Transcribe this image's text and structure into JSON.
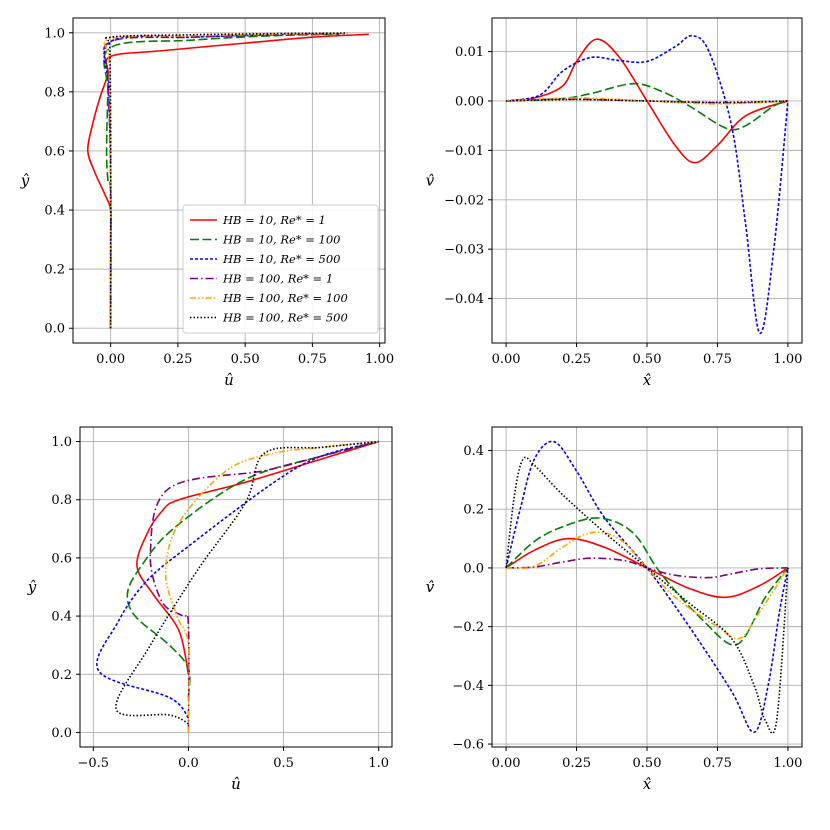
{
  "figure": {
    "panel_count": 4
  },
  "legend": [
    {
      "label": "HB = 10, Re* = 1",
      "color": "#ff0000",
      "style": "solid"
    },
    {
      "label": "HB = 10, Re* = 100",
      "color": "#008000",
      "style": "dashed"
    },
    {
      "label": "HB = 10, Re* = 500",
      "color": "#0000ff",
      "style": "dotted-dense"
    },
    {
      "label": "HB = 100, Re* = 1",
      "color": "#800080",
      "style": "dashdot"
    },
    {
      "label": "HB = 100, Re* = 100",
      "color": "#ffa500",
      "style": "dashdotdot"
    },
    {
      "label": "HB = 100, Re* = 500",
      "color": "#000000",
      "style": "dotted"
    }
  ],
  "chart_data": [
    {
      "type": "line",
      "xlabel": "û",
      "ylabel": "ŷ",
      "xlim": [
        -0.14,
        1.02
      ],
      "ylim": [
        -0.05,
        1.05
      ],
      "xticks": [
        0.0,
        0.25,
        0.5,
        0.75,
        1.0
      ],
      "xtick_labels": [
        "0.00",
        "0.25",
        "0.50",
        "0.75",
        "1.00"
      ],
      "yticks": [
        0.0,
        0.2,
        0.4,
        0.6,
        0.8,
        1.0
      ],
      "ytick_labels": [
        "0.0",
        "0.2",
        "0.4",
        "0.6",
        "0.8",
        "1.0"
      ],
      "grid": true,
      "legend_position": "lower-right",
      "series": [
        {
          "name": "HB = 10, Re* = 1",
          "x": [
            0,
            0,
            0,
            -0.02,
            -0.06,
            -0.085,
            -0.07,
            -0.04,
            -0.01,
            0,
            0.2,
            0.5,
            0.75,
            0.96
          ],
          "y": [
            0,
            0.3,
            0.4,
            0.45,
            0.53,
            0.6,
            0.68,
            0.78,
            0.86,
            0.92,
            0.94,
            0.965,
            0.985,
            0.995
          ]
        },
        {
          "name": "HB = 10, Re* = 100",
          "x": [
            0,
            0,
            -0.01,
            -0.015,
            -0.01,
            0,
            0.3,
            0.6,
            0.85
          ],
          "y": [
            0,
            0.45,
            0.5,
            0.6,
            0.8,
            0.95,
            0.975,
            0.99,
            0.995
          ]
        },
        {
          "name": "HB = 10, Re* = 500",
          "x": [
            0,
            0,
            -0.005,
            0,
            0.3,
            0.6,
            0.85
          ],
          "y": [
            0,
            0.5,
            0.8,
            0.97,
            0.985,
            0.993,
            0.997
          ]
        },
        {
          "name": "HB = 100, Re* = 1",
          "x": [
            0,
            0,
            -0.01,
            0,
            0.3,
            0.6,
            0.88
          ],
          "y": [
            0,
            0.55,
            0.85,
            0.97,
            0.985,
            0.993,
            0.997
          ]
        },
        {
          "name": "HB = 100, Re* = 100",
          "x": [
            0,
            0,
            -0.005,
            0,
            0.3,
            0.6,
            0.88
          ],
          "y": [
            0,
            0.6,
            0.9,
            0.98,
            0.99,
            0.995,
            0.998
          ]
        },
        {
          "name": "HB = 100, Re* = 500",
          "x": [
            0,
            0,
            -0.003,
            0,
            0.3,
            0.6,
            0.88
          ],
          "y": [
            0,
            0.7,
            0.95,
            0.985,
            0.993,
            0.997,
            0.999
          ]
        }
      ]
    },
    {
      "type": "line",
      "xlabel": "x̂",
      "ylabel": "v̂",
      "xlim": [
        -0.05,
        1.05
      ],
      "ylim": [
        -0.049,
        0.0168
      ],
      "xticks": [
        0.0,
        0.25,
        0.5,
        0.75,
        1.0
      ],
      "xtick_labels": [
        "0.00",
        "0.25",
        "0.50",
        "0.75",
        "1.00"
      ],
      "yticks": [
        0.01,
        0.0,
        -0.01,
        -0.02,
        -0.03,
        -0.04
      ],
      "ytick_labels": [
        "0.01",
        "0.00",
        "−0.01",
        "−0.02",
        "−0.03",
        "−0.04"
      ],
      "grid": true,
      "series": [
        {
          "name": "HB = 10, Re* = 1",
          "x": [
            0,
            0.1,
            0.2,
            0.25,
            0.32,
            0.4,
            0.5,
            0.6,
            0.67,
            0.75,
            0.85,
            1.0
          ],
          "y": [
            0,
            0.0006,
            0.003,
            0.008,
            0.0125,
            0.009,
            0.0,
            -0.009,
            -0.0125,
            -0.009,
            -0.003,
            0
          ]
        },
        {
          "name": "HB = 10, Re* = 100",
          "x": [
            0,
            0.2,
            0.3,
            0.45,
            0.55,
            0.65,
            0.78,
            0.85,
            0.95,
            1.0
          ],
          "y": [
            0,
            0.0005,
            0.0015,
            0.0035,
            0.002,
            -0.001,
            -0.0055,
            -0.005,
            -0.001,
            0
          ]
        },
        {
          "name": "HB = 10, Re* = 500",
          "x": [
            0,
            0.12,
            0.2,
            0.3,
            0.4,
            0.5,
            0.6,
            0.66,
            0.72,
            0.8,
            0.85,
            0.9,
            0.95,
            1.0
          ],
          "y": [
            0,
            0.0012,
            0.006,
            0.0088,
            0.0082,
            0.008,
            0.011,
            0.0132,
            0.01,
            -0.005,
            -0.025,
            -0.047,
            -0.03,
            0
          ]
        },
        {
          "name": "HB = 100, Re* = 1",
          "x": [
            0,
            0.2,
            0.5,
            0.8,
            1.0
          ],
          "y": [
            0,
            0.0004,
            0.0,
            -0.0004,
            0
          ]
        },
        {
          "name": "HB = 100, Re* = 100",
          "x": [
            0,
            0.25,
            0.5,
            0.75,
            1.0
          ],
          "y": [
            0,
            0.0006,
            0.0,
            -0.0006,
            0
          ]
        },
        {
          "name": "HB = 100, Re* = 500",
          "x": [
            0,
            0.25,
            0.5,
            0.75,
            1.0
          ],
          "y": [
            0,
            0.0003,
            0.0,
            -0.0003,
            0
          ]
        }
      ]
    },
    {
      "type": "line",
      "xlabel": "û",
      "ylabel": "ŷ",
      "xlim": [
        -0.57,
        1.07
      ],
      "ylim": [
        -0.05,
        1.05
      ],
      "xticks": [
        -0.5,
        0.0,
        0.5,
        1.0
      ],
      "xtick_labels": [
        "−0.5",
        "0.0",
        "0.5",
        "1.0"
      ],
      "yticks": [
        0.0,
        0.2,
        0.4,
        0.6,
        0.8,
        1.0
      ],
      "ytick_labels": [
        "0.0",
        "0.2",
        "0.4",
        "0.6",
        "0.8",
        "1.0"
      ],
      "grid": true,
      "series": [
        {
          "name": "HB = 10, Re* = 1",
          "x": [
            0,
            -0.05,
            -0.18,
            -0.27,
            -0.22,
            -0.14,
            -0.05,
            0.3,
            0.7,
            1.0
          ],
          "y": [
            0.2,
            0.35,
            0.47,
            0.57,
            0.68,
            0.76,
            0.8,
            0.86,
            0.94,
            1.0
          ]
        },
        {
          "name": "HB = 10, Re* = 100",
          "x": [
            0,
            0,
            -0.1,
            -0.28,
            -0.32,
            -0.25,
            -0.08,
            0.3,
            0.7,
            1.0
          ],
          "y": [
            0.12,
            0.22,
            0.3,
            0.4,
            0.48,
            0.57,
            0.7,
            0.87,
            0.95,
            1.0
          ]
        },
        {
          "name": "HB = 10, Re* = 500",
          "x": [
            0,
            -0.1,
            -0.47,
            -0.37,
            -0.22,
            0,
            0.45,
            0.7,
            1.0
          ],
          "y": [
            0.05,
            0.12,
            0.21,
            0.38,
            0.52,
            0.64,
            0.86,
            0.95,
            1.0
          ]
        },
        {
          "name": "HB = 100, Re* = 1",
          "x": [
            0,
            0,
            -0.03,
            -0.14,
            -0.2,
            -0.1,
            0.4,
            0.7,
            1.0
          ],
          "y": [
            0,
            0.37,
            0.4,
            0.45,
            0.62,
            0.84,
            0.9,
            0.95,
            1.0
          ]
        },
        {
          "name": "HB = 100, Re* = 100",
          "x": [
            0,
            0,
            -0.06,
            -0.12,
            -0.05,
            0.2,
            0.45,
            0.7,
            1.0
          ],
          "y": [
            0,
            0.3,
            0.4,
            0.55,
            0.72,
            0.9,
            0.96,
            0.98,
            1.0
          ]
        },
        {
          "name": "HB = 100, Re* = 500",
          "x": [
            0,
            -0.1,
            -0.38,
            -0.2,
            0.05,
            0.3,
            0.4,
            0.7,
            1.0
          ],
          "y": [
            0.03,
            0.06,
            0.08,
            0.3,
            0.56,
            0.79,
            0.96,
            0.98,
            1.0
          ]
        }
      ]
    },
    {
      "type": "line",
      "xlabel": "x̂",
      "ylabel": "v̂",
      "xlim": [
        -0.05,
        1.05
      ],
      "ylim": [
        -0.61,
        0.48
      ],
      "xticks": [
        0.0,
        0.25,
        0.5,
        0.75,
        1.0
      ],
      "xtick_labels": [
        "0.00",
        "0.25",
        "0.50",
        "0.75",
        "1.00"
      ],
      "yticks": [
        0.4,
        0.2,
        0.0,
        -0.2,
        -0.4,
        -0.6
      ],
      "ytick_labels": [
        "0.4",
        "0.2",
        "0.0",
        "−0.2",
        "−0.4",
        "−0.6"
      ],
      "grid": true,
      "series": [
        {
          "name": "HB = 10, Re* = 1",
          "x": [
            0,
            0.1,
            0.22,
            0.35,
            0.5,
            0.65,
            0.78,
            0.9,
            1.0
          ],
          "y": [
            0,
            0.06,
            0.1,
            0.07,
            0.0,
            -0.07,
            -0.1,
            -0.06,
            0
          ]
        },
        {
          "name": "HB = 10, Re* = 100",
          "x": [
            0,
            0.1,
            0.2,
            0.33,
            0.45,
            0.55,
            0.7,
            0.82,
            0.92,
            1.0
          ],
          "y": [
            0,
            0.09,
            0.14,
            0.17,
            0.12,
            -0.02,
            -0.18,
            -0.26,
            -0.1,
            0
          ]
        },
        {
          "name": "HB = 10, Re* = 500",
          "x": [
            0,
            0.05,
            0.1,
            0.17,
            0.25,
            0.35,
            0.5,
            0.65,
            0.8,
            0.88,
            0.93,
            0.97,
            1.0
          ],
          "y": [
            0,
            0.2,
            0.37,
            0.43,
            0.33,
            0.17,
            0.0,
            -0.2,
            -0.42,
            -0.56,
            -0.4,
            -0.15,
            0
          ]
        },
        {
          "name": "HB = 100, Re* = 1",
          "x": [
            0,
            0.1,
            0.2,
            0.3,
            0.42,
            0.5,
            0.6,
            0.72,
            0.8,
            0.9,
            1.0
          ],
          "y": [
            0,
            0.003,
            0.02,
            0.033,
            0.025,
            0.0,
            -0.025,
            -0.033,
            -0.02,
            -0.003,
            0
          ]
        },
        {
          "name": "HB = 100, Re* = 100",
          "x": [
            0,
            0.1,
            0.2,
            0.3,
            0.4,
            0.5,
            0.6,
            0.75,
            0.83,
            0.9,
            1.0
          ],
          "y": [
            0,
            0.005,
            0.07,
            0.12,
            0.1,
            0.0,
            -0.1,
            -0.2,
            -0.24,
            -0.15,
            0
          ]
        },
        {
          "name": "HB = 100, Re* = 500",
          "x": [
            0,
            0.03,
            0.06,
            0.1,
            0.2,
            0.35,
            0.5,
            0.65,
            0.8,
            0.88,
            0.92,
            0.96,
            1.0
          ],
          "y": [
            0,
            0.25,
            0.37,
            0.35,
            0.25,
            0.12,
            0.0,
            -0.12,
            -0.24,
            -0.4,
            -0.52,
            -0.52,
            0
          ]
        }
      ]
    }
  ]
}
